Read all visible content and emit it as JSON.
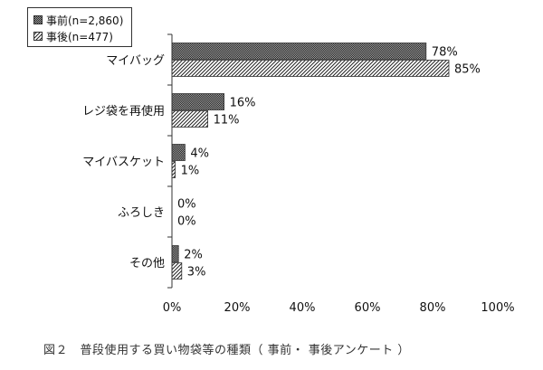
{
  "chart_data": {
    "type": "bar",
    "orientation": "horizontal",
    "categories": [
      "マイバッグ",
      "レジ袋を再使用",
      "マイバスケット",
      "ふろしき",
      "その他"
    ],
    "series": [
      {
        "name": "事前(n=2,860)",
        "values": [
          78,
          16,
          4,
          0,
          2
        ],
        "labels": [
          "78%",
          "16%",
          "4%",
          "0%",
          "2%"
        ],
        "pattern": "checker",
        "color": "#555555"
      },
      {
        "name": "事後(n=477)",
        "values": [
          85,
          11,
          1,
          0,
          3
        ],
        "labels": [
          "85%",
          "11%",
          "1%",
          "0%",
          "3%"
        ],
        "pattern": "hatch",
        "color": "#333333"
      }
    ],
    "xlim": [
      0,
      100
    ],
    "xticks": [
      "0%",
      "20%",
      "40%",
      "60%",
      "80%",
      "100%"
    ],
    "legend_position": "top-left",
    "grid": false
  },
  "caption": "図２　普段使用する買い物袋等の種類（ 事前・ 事後アンケート ）"
}
